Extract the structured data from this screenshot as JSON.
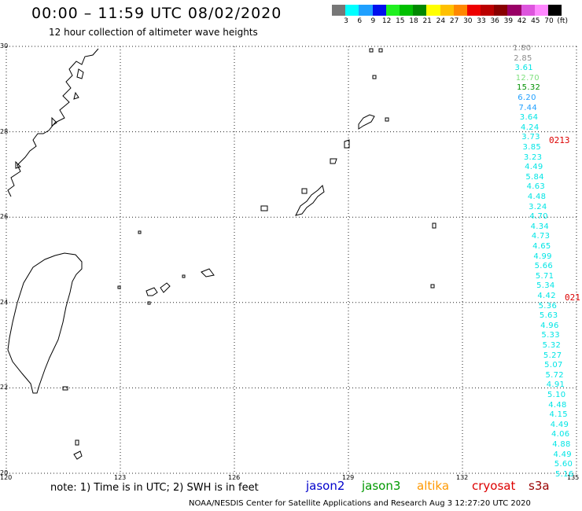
{
  "title": "00:00 – 11:59 UTC 08/02/2020",
  "subtitle": "12 hour collection of altimeter wave heights",
  "colorbar": {
    "colors": [
      "#777777",
      "#00ffff",
      "#1fa0ff",
      "#0010ee",
      "#20f020",
      "#00c000",
      "#008800",
      "#ffff00",
      "#ffc000",
      "#ff8800",
      "#ee0000",
      "#bb0000",
      "#880000",
      "#990066",
      "#dd55dd",
      "#ff88ff",
      "#000000"
    ],
    "labels": [
      "3",
      "6",
      "9",
      "12",
      "15",
      "18",
      "21",
      "24",
      "27",
      "30",
      "33",
      "36",
      "39",
      "42",
      "45",
      "70",
      "(ft)"
    ]
  },
  "axes": {
    "lat_labels": [
      "30",
      "28",
      "26",
      "24",
      "22",
      "20"
    ],
    "lon_labels": [
      "120",
      "123",
      "126",
      "129",
      "132",
      "135"
    ]
  },
  "readings": [
    {
      "text": "1.80",
      "color": "#8c8c8c"
    },
    {
      "text": "2.85",
      "color": "#8c8c8c"
    },
    {
      "text": "3.61",
      "color": "#00e5e5"
    },
    {
      "text": "12.70",
      "color": "#7ee07e"
    },
    {
      "text": "15.32",
      "color": "#009000"
    },
    {
      "text": "6.20",
      "color": "#1f9fff"
    },
    {
      "text": "7.44",
      "color": "#1f9fff"
    },
    {
      "text": "3.64",
      "color": "#00e5e5"
    },
    {
      "text": "4.24",
      "color": "#00e5e5"
    },
    {
      "text": "3.73",
      "color": "#00e5e5"
    },
    {
      "text": "3.85",
      "color": "#00e5e5"
    },
    {
      "text": "3.23",
      "color": "#00e5e5"
    },
    {
      "text": "4.49",
      "color": "#00e5e5"
    },
    {
      "text": "5.84",
      "color": "#00e5e5"
    },
    {
      "text": "4.63",
      "color": "#00e5e5"
    },
    {
      "text": "4.48",
      "color": "#00e5e5"
    },
    {
      "text": "3.24",
      "color": "#00e5e5"
    },
    {
      "text": "4.70",
      "color": "#00e5e5"
    },
    {
      "text": "4.34",
      "color": "#00e5e5"
    },
    {
      "text": "4.73",
      "color": "#00e5e5"
    },
    {
      "text": "4.65",
      "color": "#00e5e5"
    },
    {
      "text": "4.99",
      "color": "#00e5e5"
    },
    {
      "text": "5.66",
      "color": "#00e5e5"
    },
    {
      "text": "5.71",
      "color": "#00e5e5"
    },
    {
      "text": "5.34",
      "color": "#00e5e5"
    },
    {
      "text": "4.42",
      "color": "#00e5e5"
    },
    {
      "text": "5.36",
      "color": "#00e5e5"
    },
    {
      "text": "5.63",
      "color": "#00e5e5"
    },
    {
      "text": "4.96",
      "color": "#00e5e5"
    },
    {
      "text": "5.33",
      "color": "#00e5e5"
    },
    {
      "text": "5.32",
      "color": "#00e5e5"
    },
    {
      "text": "5.27",
      "color": "#00e5e5"
    },
    {
      "text": "5.07",
      "color": "#00e5e5"
    },
    {
      "text": "5.72",
      "color": "#00e5e5"
    },
    {
      "text": "4.91",
      "color": "#00e5e5"
    },
    {
      "text": "5.10",
      "color": "#00e5e5"
    },
    {
      "text": "4.48",
      "color": "#00e5e5"
    },
    {
      "text": "4.15",
      "color": "#00e5e5"
    },
    {
      "text": "4.49",
      "color": "#00e5e5"
    },
    {
      "text": "4.06",
      "color": "#00e5e5"
    },
    {
      "text": "4.88",
      "color": "#00e5e5"
    },
    {
      "text": "4.49",
      "color": "#00e5e5"
    },
    {
      "text": "5.60",
      "color": "#00e5e5"
    },
    {
      "text": "5.16",
      "color": "#00e5e5"
    }
  ],
  "pass_labels": [
    {
      "text": "0213",
      "color": "#dd0000"
    },
    {
      "text": "021",
      "color": "#dd0000"
    }
  ],
  "footer": {
    "note": "note: 1) Time is in UTC; 2) SWH is in feet",
    "credit": "NOAA/NESDIS Center for Satellite Applications and Research     Aug  3 12:27:20 UTC 2020",
    "satellites": [
      {
        "name": "jason2",
        "color": "#0000cc"
      },
      {
        "name": "jason3",
        "color": "#009900"
      },
      {
        "name": "altika",
        "color": "#ff9900"
      },
      {
        "name": "cryosat",
        "color": "#dd0000"
      },
      {
        "name": "s3a",
        "color": "#990000"
      }
    ]
  }
}
